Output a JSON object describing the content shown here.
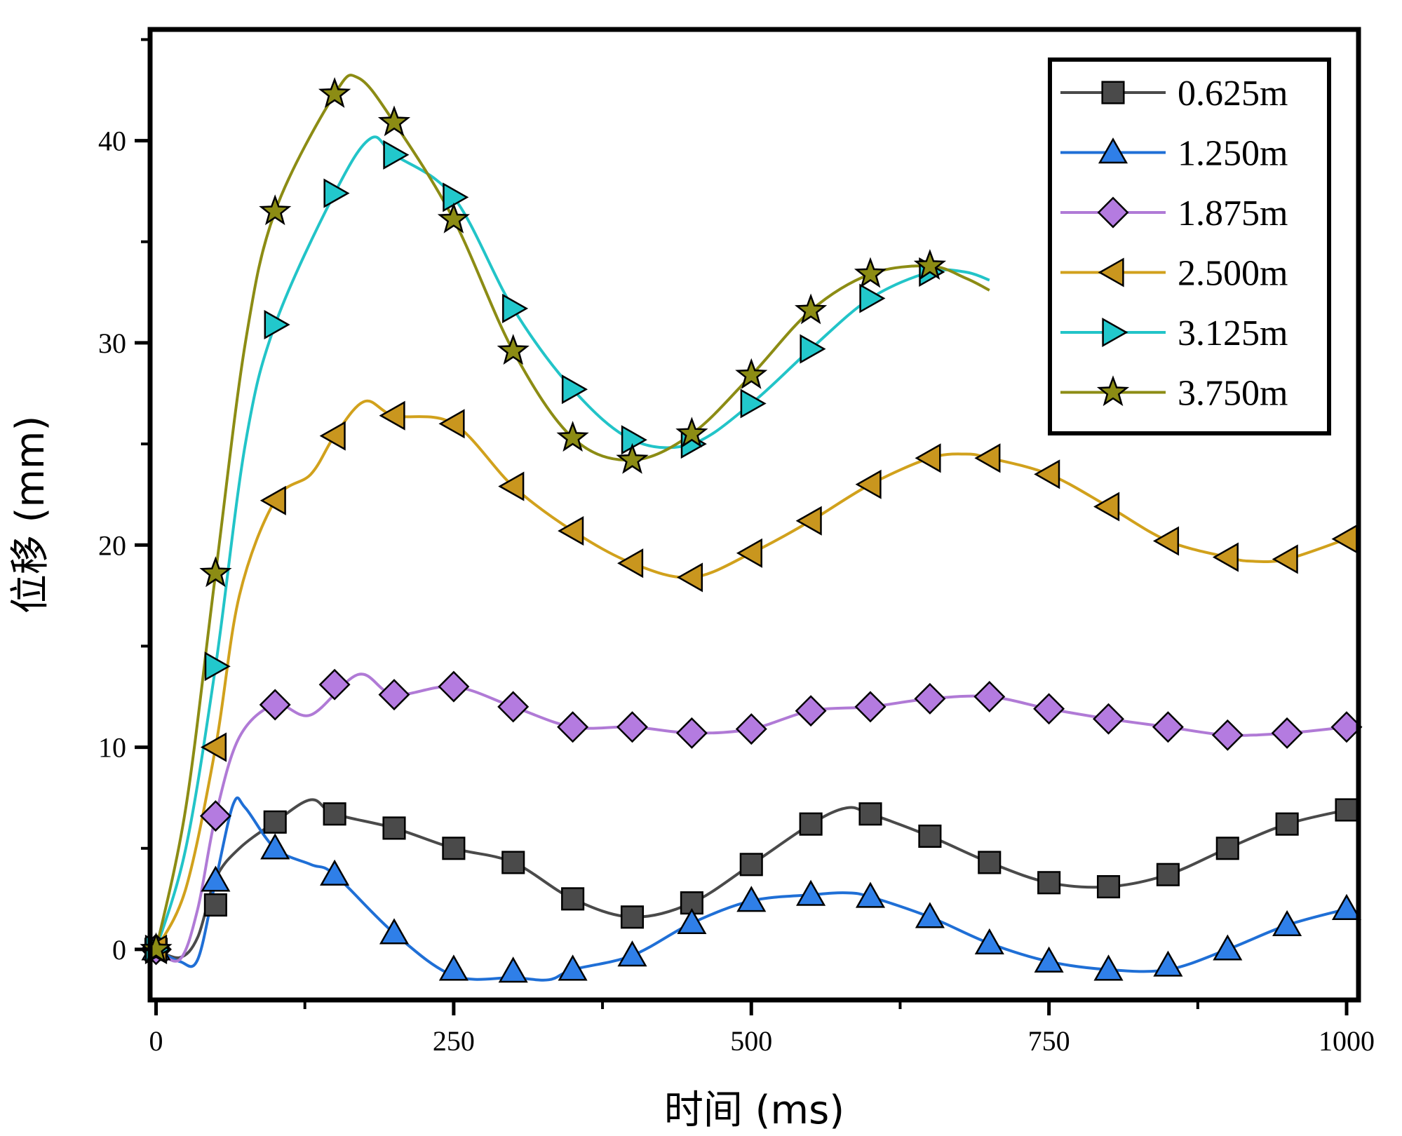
{
  "chart_data": {
    "type": "line",
    "title": "",
    "xlabel": "时间 (ms)",
    "ylabel": "位移 (mm)",
    "xlim": [
      -5,
      1010
    ],
    "ylim": [
      -2.5,
      45.5
    ],
    "xticks": [
      0,
      250,
      500,
      750,
      1000
    ],
    "yticks": [
      0,
      10,
      20,
      30,
      40
    ],
    "legend_position": "top-right",
    "series": [
      {
        "name": "0.625m",
        "color": "#4a4a4a",
        "marker": "square",
        "marker_fill": "#4a4a4a",
        "x": [
          0,
          20,
          35,
          50,
          70,
          100,
          130,
          150,
          200,
          250,
          300,
          350,
          400,
          450,
          500,
          550,
          580,
          600,
          650,
          700,
          750,
          800,
          850,
          900,
          950,
          1000
        ],
        "y": [
          0,
          -0.4,
          0.6,
          3.5,
          5.0,
          6.3,
          7.4,
          6.7,
          6.0,
          5.0,
          4.3,
          2.5,
          1.6,
          2.3,
          4.2,
          6.2,
          7.0,
          6.7,
          5.6,
          4.3,
          3.3,
          3.1,
          3.7,
          5.0,
          6.2,
          6.9
        ],
        "marker_x": [
          0,
          50,
          100,
          150,
          200,
          250,
          300,
          350,
          400,
          450,
          500,
          550,
          600,
          650,
          700,
          750,
          800,
          850,
          900,
          950,
          1000
        ],
        "marker_y": [
          0,
          2.2,
          6.3,
          6.7,
          6.0,
          5.0,
          4.3,
          2.5,
          1.6,
          2.3,
          4.2,
          6.2,
          6.7,
          5.6,
          4.3,
          3.3,
          3.1,
          3.7,
          5.0,
          6.2,
          6.9
        ]
      },
      {
        "name": "1.250m",
        "color": "#1f6fd6",
        "marker": "triangle-up",
        "marker_fill": "#2f7fe8",
        "x": [
          0,
          20,
          35,
          50,
          65,
          75,
          100,
          130,
          150,
          200,
          250,
          300,
          330,
          350,
          400,
          450,
          500,
          550,
          580,
          600,
          650,
          700,
          750,
          800,
          850,
          900,
          950,
          1000
        ],
        "y": [
          0,
          -0.6,
          -0.5,
          3.4,
          7.2,
          7.0,
          5.0,
          4.2,
          3.7,
          0.8,
          -1.3,
          -1.4,
          -1.5,
          -1.0,
          -0.3,
          1.3,
          2.4,
          2.7,
          2.8,
          2.6,
          1.6,
          0.3,
          -0.6,
          -1.0,
          -1.0,
          0.0,
          1.2,
          2.0
        ],
        "marker_x": [
          0,
          50,
          100,
          150,
          200,
          250,
          300,
          350,
          400,
          450,
          500,
          550,
          600,
          650,
          700,
          750,
          800,
          850,
          900,
          950,
          1000
        ],
        "marker_y": [
          0,
          3.4,
          5.0,
          3.7,
          0.8,
          -1.0,
          -1.1,
          -1.0,
          -0.3,
          1.3,
          2.4,
          2.7,
          2.6,
          1.6,
          0.3,
          -0.6,
          -1.0,
          -0.8,
          0.0,
          1.2,
          2.0
        ]
      },
      {
        "name": "1.875m",
        "color": "#b07ad6",
        "marker": "diamond",
        "marker_fill": "#b47be0",
        "x": [
          0,
          20,
          35,
          50,
          70,
          100,
          130,
          170,
          200,
          250,
          300,
          350,
          400,
          450,
          500,
          550,
          600,
          650,
          700,
          750,
          800,
          850,
          900,
          950,
          1000
        ],
        "y": [
          0,
          -0.5,
          2.0,
          6.6,
          10.5,
          12.1,
          11.6,
          13.6,
          12.6,
          13.0,
          12.0,
          11.0,
          11.0,
          10.7,
          10.9,
          11.8,
          12.0,
          12.4,
          12.5,
          11.9,
          11.4,
          11.0,
          10.6,
          10.7,
          11.0
        ],
        "marker_x": [
          0,
          50,
          100,
          150,
          200,
          250,
          300,
          350,
          400,
          450,
          500,
          550,
          600,
          650,
          700,
          750,
          800,
          850,
          900,
          950,
          1000
        ],
        "marker_y": [
          0,
          6.6,
          12.1,
          13.1,
          12.6,
          13.0,
          12.0,
          11.0,
          11.0,
          10.7,
          10.9,
          11.8,
          12.0,
          12.4,
          12.5,
          11.9,
          11.4,
          11.0,
          10.6,
          10.7,
          11.0
        ]
      },
      {
        "name": "2.500m",
        "color": "#d1a11c",
        "marker": "triangle-left",
        "marker_fill": "#c9961e",
        "x": [
          0,
          25,
          50,
          70,
          100,
          130,
          150,
          175,
          200,
          250,
          300,
          350,
          400,
          450,
          500,
          550,
          600,
          650,
          680,
          700,
          750,
          800,
          850,
          900,
          920,
          950,
          1000
        ],
        "y": [
          0,
          3.0,
          10.0,
          17.5,
          22.2,
          23.5,
          25.4,
          27.1,
          26.4,
          26.0,
          22.9,
          20.7,
          19.1,
          18.4,
          19.6,
          21.2,
          23.0,
          24.3,
          24.5,
          24.3,
          23.5,
          21.9,
          20.2,
          19.4,
          19.2,
          19.3,
          20.3
        ],
        "marker_x": [
          0,
          50,
          100,
          150,
          200,
          250,
          300,
          350,
          400,
          450,
          500,
          550,
          600,
          650,
          700,
          750,
          800,
          850,
          900,
          950,
          1000
        ],
        "marker_y": [
          0,
          10.0,
          22.2,
          25.4,
          26.4,
          26.0,
          22.9,
          20.7,
          19.1,
          18.4,
          19.6,
          21.2,
          23.0,
          24.3,
          24.3,
          23.5,
          21.9,
          20.2,
          19.4,
          19.3,
          20.3
        ]
      },
      {
        "name": "3.125m",
        "color": "#22c4c8",
        "marker": "triangle-right",
        "marker_fill": "#22c8cc",
        "x": [
          0,
          25,
          50,
          75,
          100,
          150,
          180,
          200,
          250,
          300,
          350,
          400,
          450,
          500,
          550,
          600,
          650,
          680,
          700
        ],
        "y": [
          0,
          5.0,
          14.0,
          25.0,
          30.9,
          37.4,
          40.1,
          39.3,
          37.2,
          31.7,
          27.7,
          25.2,
          25.0,
          27.0,
          29.7,
          32.2,
          33.5,
          33.5,
          33.1
        ],
        "marker_x": [
          0,
          50,
          100,
          150,
          200,
          250,
          300,
          350,
          400,
          450,
          500,
          550,
          600,
          650
        ],
        "marker_y": [
          0,
          14.0,
          30.9,
          37.4,
          39.3,
          37.2,
          31.7,
          27.7,
          25.2,
          25.0,
          27.0,
          29.7,
          32.2,
          33.5
        ]
      },
      {
        "name": "3.750m",
        "color": "#8c8c14",
        "marker": "star",
        "marker_fill": "#8c8c14",
        "x": [
          0,
          25,
          50,
          75,
          100,
          150,
          170,
          200,
          250,
          300,
          350,
          400,
          450,
          500,
          550,
          600,
          650,
          680,
          700
        ],
        "y": [
          0,
          7.0,
          18.6,
          30.0,
          36.5,
          42.3,
          43.1,
          40.9,
          36.1,
          29.6,
          25.3,
          24.2,
          25.5,
          28.4,
          31.6,
          33.4,
          33.8,
          33.2,
          32.6
        ],
        "marker_x": [
          0,
          50,
          100,
          150,
          200,
          250,
          300,
          350,
          400,
          450,
          500,
          550,
          600,
          650
        ],
        "marker_y": [
          0,
          18.6,
          36.5,
          42.3,
          40.9,
          36.1,
          29.6,
          25.3,
          24.2,
          25.5,
          28.4,
          31.6,
          33.4,
          33.8
        ]
      }
    ]
  }
}
